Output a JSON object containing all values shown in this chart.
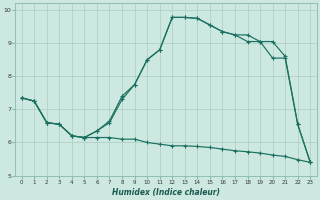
{
  "xlabel": "Humidex (Indice chaleur)",
  "bg_color": "#cce8e0",
  "line_color": "#1a7060",
  "grid_color": "#aaccc4",
  "xlim": [
    -0.5,
    23.5
  ],
  "ylim": [
    5,
    10.2
  ],
  "xticks": [
    0,
    1,
    2,
    3,
    4,
    5,
    6,
    7,
    8,
    9,
    10,
    11,
    12,
    13,
    14,
    15,
    16,
    17,
    18,
    19,
    20,
    21,
    22,
    23
  ],
  "yticks": [
    5,
    6,
    7,
    8,
    9,
    10
  ],
  "curve1_x": [
    0,
    1,
    2,
    3,
    4,
    5,
    6,
    7,
    8,
    9,
    10,
    11,
    12,
    13,
    14,
    15,
    16,
    17,
    18,
    19,
    20,
    21,
    22,
    23
  ],
  "curve1_y": [
    7.35,
    7.25,
    6.6,
    6.55,
    6.2,
    6.15,
    6.35,
    6.6,
    7.3,
    7.75,
    8.5,
    8.8,
    9.78,
    9.78,
    9.75,
    9.55,
    9.35,
    9.25,
    9.25,
    9.05,
    9.05,
    8.6,
    6.55,
    5.4
  ],
  "curve2_x": [
    0,
    1,
    2,
    3,
    4,
    5,
    6,
    7,
    8,
    9,
    10,
    11,
    12,
    13,
    14,
    15,
    16,
    17,
    18,
    19,
    20,
    21,
    22,
    23
  ],
  "curve2_y": [
    7.35,
    7.25,
    6.6,
    6.55,
    6.2,
    6.15,
    6.35,
    6.65,
    7.4,
    7.75,
    8.5,
    8.8,
    9.78,
    9.78,
    9.75,
    9.55,
    9.35,
    9.25,
    9.05,
    9.05,
    8.55,
    8.55,
    6.55,
    5.4
  ],
  "curve3_x": [
    0,
    1,
    2,
    3,
    4,
    5,
    6,
    7,
    8,
    9,
    10,
    11,
    12,
    13,
    14,
    15,
    16,
    17,
    18,
    19,
    20,
    21,
    22,
    23
  ],
  "curve3_y": [
    7.35,
    7.25,
    6.6,
    6.55,
    6.2,
    6.15,
    6.15,
    6.15,
    6.1,
    6.1,
    6.0,
    5.95,
    5.9,
    5.9,
    5.88,
    5.85,
    5.8,
    5.75,
    5.72,
    5.68,
    5.62,
    5.58,
    5.48,
    5.4
  ]
}
